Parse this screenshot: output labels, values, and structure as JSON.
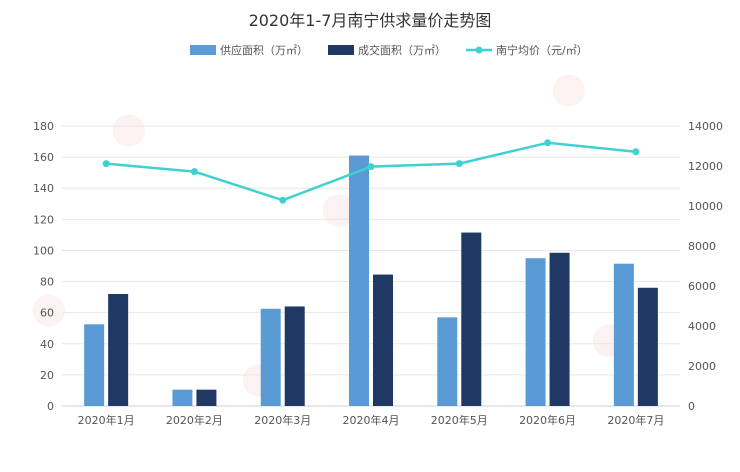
{
  "chart_data": {
    "type": "bar",
    "title": "2020年1-7月南宁供求量价走势图",
    "categories": [
      "2020年1月",
      "2020年2月",
      "2020年3月",
      "2020年4月",
      "2020年5月",
      "2020年6月",
      "2020年7月"
    ],
    "series": [
      {
        "name": "供应面积（万㎡）",
        "type": "bar",
        "axis": "left",
        "values": [
          52.5,
          10.5,
          62.5,
          161,
          57,
          95,
          91.5
        ]
      },
      {
        "name": "成交面积（万㎡）",
        "type": "bar",
        "axis": "left",
        "values": [
          72,
          10.5,
          64,
          84.5,
          111.5,
          98.5,
          76
        ]
      },
      {
        "name": "南宁均价（元/㎡）",
        "type": "line",
        "axis": "right",
        "values": [
          12120,
          11720,
          10290,
          11970,
          12120,
          13160,
          12710
        ]
      }
    ],
    "y_left": {
      "min": 0,
      "max": 180,
      "step": 20
    },
    "y_right": {
      "min": 0,
      "max": 14000,
      "step": 2000
    },
    "legend_position": "top-center",
    "grid": true,
    "colors": {
      "supply": "#5b9bd5",
      "deal": "#1f3864",
      "price": "#3fd1d1",
      "grid": "#e8e8e8",
      "text": "#555555"
    }
  }
}
